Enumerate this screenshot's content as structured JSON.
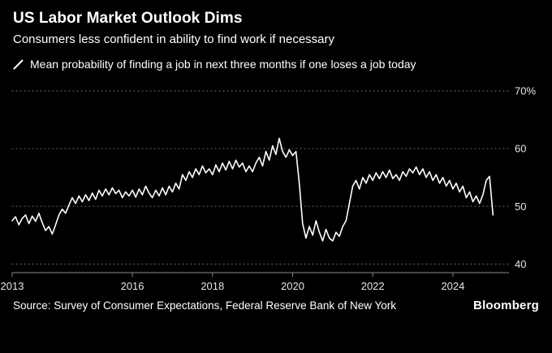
{
  "header": {
    "title": "US Labor Market Outlook Dims",
    "subtitle": "Consumers less confident in ability to find work if necessary"
  },
  "legend": {
    "label": "Mean probability of finding a job in next three months if one loses a job today"
  },
  "footer": {
    "source": "Source: Survey of Consumer Expectations, Federal Reserve Bank of New York",
    "logo": "Bloomberg"
  },
  "colors": {
    "background": "#000000",
    "text": "#ffffff",
    "tick_text": "#e6e6e6",
    "line": "#ffffff",
    "grid": "#5a5a5a",
    "axis": "#8a8a8a"
  },
  "chart_data": {
    "type": "line",
    "title": "US Labor Market Outlook Dims",
    "xlabel": "",
    "ylabel": "",
    "grid": "horizontal-dotted",
    "legend_position": "top-left",
    "x_start": 2013,
    "points_per_year": 12,
    "xlim": [
      2013,
      2025.4
    ],
    "ylim": [
      38.5,
      71
    ],
    "yticks": [
      {
        "value": 70,
        "label": "70%"
      },
      {
        "value": 60,
        "label": "60"
      },
      {
        "value": 50,
        "label": "50"
      },
      {
        "value": 40,
        "label": "40"
      }
    ],
    "xticks": [
      {
        "value": 2013,
        "label": "2013"
      },
      {
        "value": 2016,
        "label": "2016"
      },
      {
        "value": 2018,
        "label": "2018"
      },
      {
        "value": 2020,
        "label": "2020"
      },
      {
        "value": 2022,
        "label": "2022"
      },
      {
        "value": 2024,
        "label": "2024"
      }
    ],
    "series": [
      {
        "name": "Mean probability of finding a job in next three months if one loses a job today",
        "values": [
          47.5,
          48.2,
          46.8,
          47.9,
          48.5,
          47.0,
          48.3,
          47.4,
          48.8,
          47.2,
          45.8,
          46.5,
          45.2,
          46.8,
          48.5,
          49.5,
          48.8,
          50.2,
          51.5,
          50.5,
          51.8,
          50.8,
          52.0,
          51.0,
          52.3,
          51.2,
          52.8,
          51.8,
          53.0,
          52.0,
          53.2,
          52.2,
          52.8,
          51.5,
          52.5,
          51.8,
          52.8,
          51.6,
          53.0,
          52.0,
          53.5,
          52.3,
          51.5,
          52.8,
          51.8,
          53.2,
          52.0,
          53.5,
          52.5,
          54.0,
          53.0,
          55.5,
          54.5,
          56.0,
          55.0,
          56.5,
          55.5,
          57.0,
          55.8,
          56.5,
          55.5,
          57.2,
          56.0,
          57.5,
          56.3,
          57.8,
          56.5,
          58.0,
          56.8,
          57.5,
          56.0,
          57.0,
          56.0,
          57.5,
          58.5,
          57.0,
          59.5,
          58.0,
          60.5,
          59.0,
          61.8,
          59.5,
          58.5,
          59.8,
          58.8,
          59.5,
          54.0,
          47.0,
          44.5,
          46.5,
          45.0,
          47.5,
          45.5,
          44.0,
          46.0,
          44.5,
          44.0,
          45.5,
          44.8,
          46.5,
          47.5,
          50.5,
          53.5,
          54.5,
          53.0,
          55.0,
          54.0,
          55.5,
          54.5,
          55.8,
          54.8,
          56.0,
          55.0,
          56.3,
          54.8,
          55.5,
          54.5,
          56.0,
          55.2,
          56.5,
          55.8,
          56.8,
          55.5,
          56.5,
          55.0,
          56.0,
          54.5,
          55.5,
          54.0,
          55.0,
          53.5,
          54.5,
          53.0,
          54.0,
          52.5,
          53.5,
          51.5,
          52.5,
          50.8,
          51.8,
          50.5,
          52.0,
          54.5,
          55.2,
          48.5
        ]
      }
    ]
  }
}
